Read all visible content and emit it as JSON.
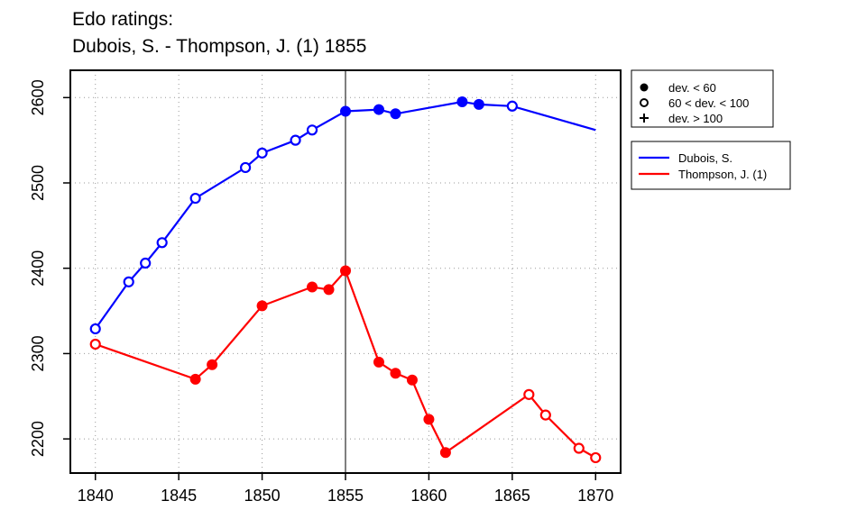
{
  "title_lines": [
    "Edo ratings:",
    "Dubois, S. - Thompson, J. (1) 1855"
  ],
  "colors": {
    "blue": "#0000ff",
    "red": "#ff0000",
    "marker_line": "#555555"
  },
  "chart_data": {
    "type": "line",
    "title": "Edo ratings: Dubois, S. - Thompson, J. (1) 1855",
    "xlabel": "",
    "ylabel": "",
    "xlim": [
      1838.5,
      1871.5
    ],
    "ylim": [
      2160,
      2632
    ],
    "x_ticks": [
      1840,
      1845,
      1850,
      1855,
      1860,
      1865,
      1870
    ],
    "y_ticks": [
      2200,
      2300,
      2400,
      2500,
      2600
    ],
    "grid": true,
    "highlight_x": 1855,
    "marker_legend": [
      {
        "symbol": "filled-circle",
        "label": "dev. < 60"
      },
      {
        "symbol": "open-circle",
        "label": "60 < dev. < 100"
      },
      {
        "symbol": "plus",
        "label": "dev. > 100"
      }
    ],
    "series": [
      {
        "name": "Dubois, S.",
        "color": "#0000ff",
        "points": [
          {
            "x": 1840,
            "y": 2329,
            "m": "open"
          },
          {
            "x": 1842,
            "y": 2384,
            "m": "open"
          },
          {
            "x": 1843,
            "y": 2406,
            "m": "open"
          },
          {
            "x": 1844,
            "y": 2430,
            "m": "open"
          },
          {
            "x": 1846,
            "y": 2482,
            "m": "open"
          },
          {
            "x": 1849,
            "y": 2518,
            "m": "open"
          },
          {
            "x": 1850,
            "y": 2535,
            "m": "open"
          },
          {
            "x": 1852,
            "y": 2550,
            "m": "open"
          },
          {
            "x": 1853,
            "y": 2562,
            "m": "open"
          },
          {
            "x": 1855,
            "y": 2584,
            "m": "filled"
          },
          {
            "x": 1857,
            "y": 2586,
            "m": "filled"
          },
          {
            "x": 1858,
            "y": 2581,
            "m": "filled"
          },
          {
            "x": 1862,
            "y": 2595,
            "m": "filled"
          },
          {
            "x": 1863,
            "y": 2592,
            "m": "filled"
          },
          {
            "x": 1865,
            "y": 2590,
            "m": "open"
          },
          {
            "x": 1870,
            "y": 2562,
            "m": "none"
          }
        ]
      },
      {
        "name": "Thompson, J. (1)",
        "color": "#ff0000",
        "points": [
          {
            "x": 1840,
            "y": 2311,
            "m": "open"
          },
          {
            "x": 1846,
            "y": 2270,
            "m": "filled"
          },
          {
            "x": 1847,
            "y": 2287,
            "m": "filled"
          },
          {
            "x": 1850,
            "y": 2356,
            "m": "filled"
          },
          {
            "x": 1853,
            "y": 2378,
            "m": "filled"
          },
          {
            "x": 1854,
            "y": 2375,
            "m": "filled"
          },
          {
            "x": 1855,
            "y": 2397,
            "m": "filled"
          },
          {
            "x": 1857,
            "y": 2290,
            "m": "filled"
          },
          {
            "x": 1858,
            "y": 2277,
            "m": "filled"
          },
          {
            "x": 1859,
            "y": 2269,
            "m": "filled"
          },
          {
            "x": 1860,
            "y": 2223,
            "m": "filled"
          },
          {
            "x": 1861,
            "y": 2184,
            "m": "filled"
          },
          {
            "x": 1866,
            "y": 2252,
            "m": "open"
          },
          {
            "x": 1867,
            "y": 2228,
            "m": "open"
          },
          {
            "x": 1869,
            "y": 2189,
            "m": "open"
          },
          {
            "x": 1870,
            "y": 2178,
            "m": "open"
          }
        ]
      }
    ]
  }
}
